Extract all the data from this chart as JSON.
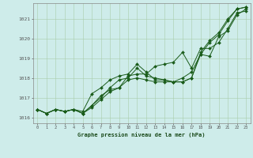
{
  "title": "Graphe pression niveau de la mer (hPa)",
  "bg_color": "#ceecea",
  "grid_color": "#aaccaa",
  "line_color": "#1a5c1a",
  "marker_color": "#1a5c1a",
  "xlim": [
    -0.5,
    23.5
  ],
  "ylim": [
    1015.7,
    1021.8
  ],
  "yticks": [
    1016,
    1017,
    1018,
    1019,
    1020,
    1021
  ],
  "xticks": [
    0,
    1,
    2,
    3,
    4,
    5,
    6,
    7,
    8,
    9,
    10,
    11,
    12,
    13,
    14,
    15,
    16,
    17,
    18,
    19,
    20,
    21,
    22,
    23
  ],
  "series": [
    [
      1016.4,
      1016.2,
      1016.4,
      1016.3,
      1016.4,
      1016.3,
      1017.2,
      1017.5,
      1017.9,
      1018.1,
      1018.2,
      1018.7,
      1018.3,
      1017.9,
      1017.9,
      1017.8,
      1017.8,
      1018.0,
      1019.3,
      1019.9,
      1020.3,
      1021.0,
      1021.5,
      1021.6
    ],
    [
      1016.4,
      1016.2,
      1016.4,
      1016.3,
      1016.4,
      1016.2,
      1016.6,
      1017.1,
      1017.4,
      1017.5,
      1018.1,
      1018.2,
      1018.2,
      1018.6,
      1018.7,
      1018.8,
      1019.3,
      1018.5,
      1019.5,
      1019.5,
      1019.8,
      1020.5,
      1021.3,
      1021.4
    ],
    [
      1016.4,
      1016.2,
      1016.4,
      1016.3,
      1016.4,
      1016.2,
      1016.5,
      1016.9,
      1017.3,
      1017.5,
      1017.9,
      1018.0,
      1017.9,
      1017.8,
      1017.8,
      1017.8,
      1018.0,
      1018.3,
      1019.2,
      1019.1,
      1020.1,
      1020.4,
      1021.2,
      1021.5
    ],
    [
      1016.4,
      1016.2,
      1016.4,
      1016.3,
      1016.4,
      1016.2,
      1016.6,
      1017.0,
      1017.5,
      1017.9,
      1018.0,
      1018.5,
      1018.1,
      1018.0,
      1017.9,
      1017.8,
      1017.8,
      1018.0,
      1019.2,
      1019.8,
      1020.2,
      1020.9,
      1021.5,
      1021.6
    ]
  ],
  "figsize": [
    3.2,
    2.0
  ],
  "dpi": 100
}
